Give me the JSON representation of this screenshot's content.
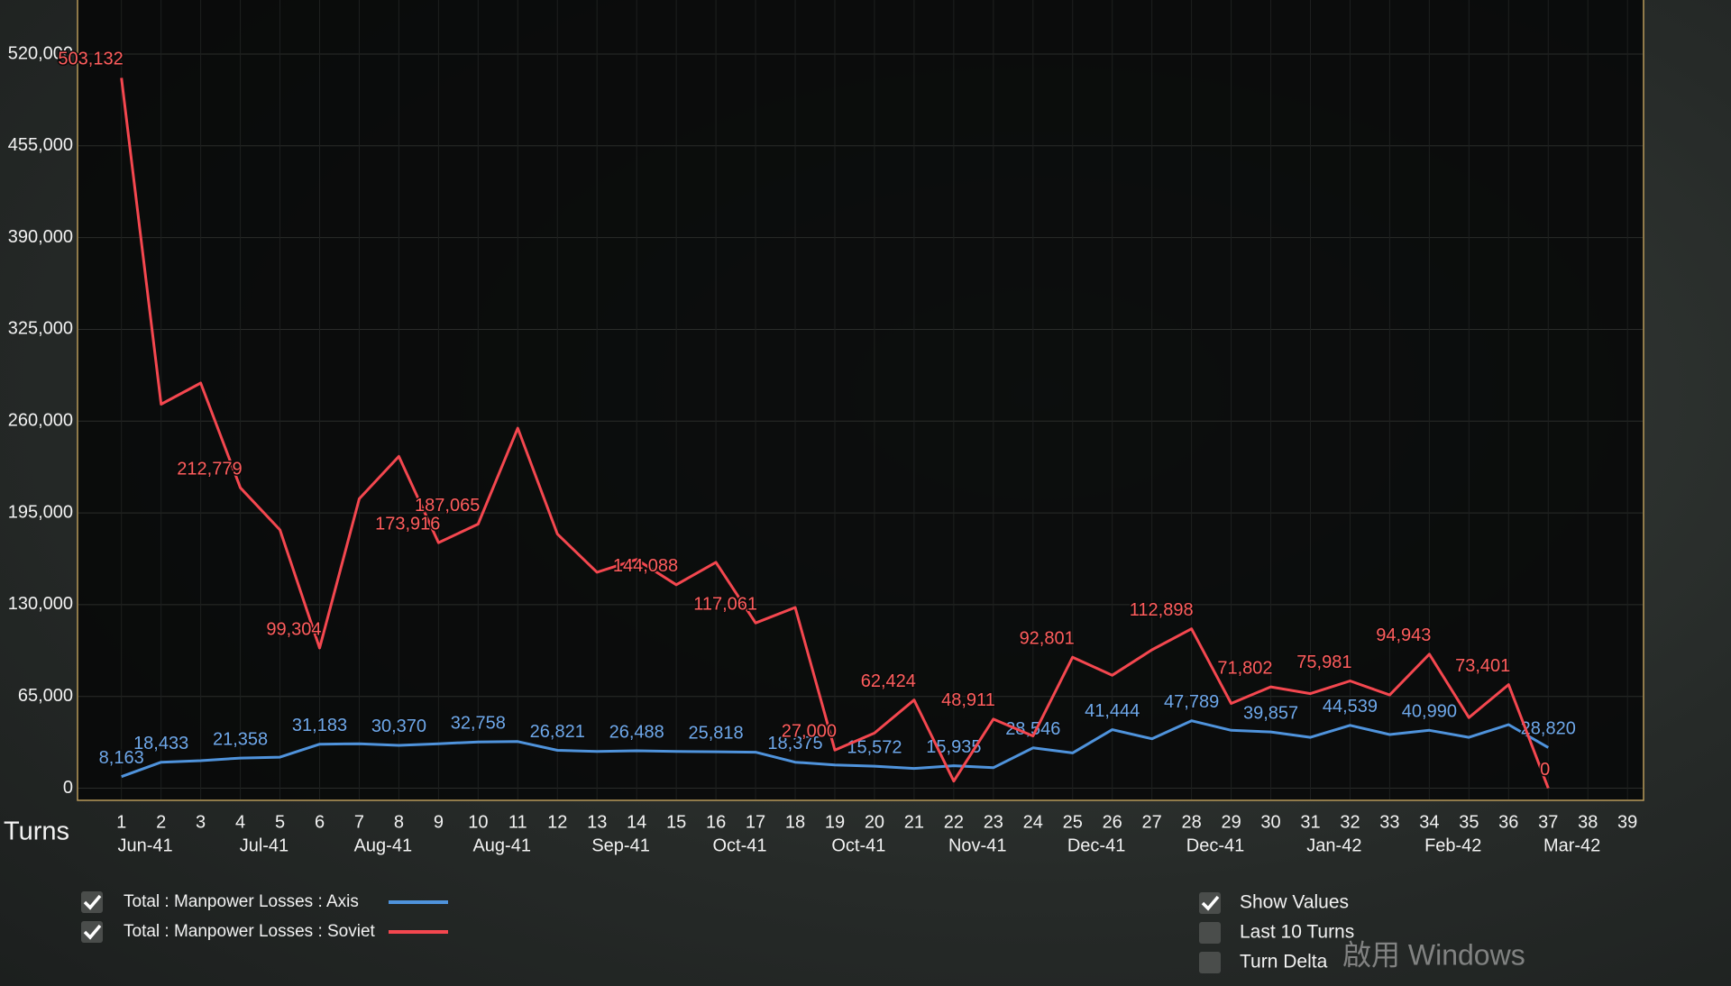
{
  "chart_data": {
    "type": "line",
    "x_label": "Turns",
    "categories": [
      "1",
      "2",
      "3",
      "4",
      "5",
      "6",
      "7",
      "8",
      "9",
      "10",
      "11",
      "12",
      "13",
      "14",
      "15",
      "16",
      "17",
      "18",
      "19",
      "20",
      "21",
      "22",
      "23",
      "24",
      "25",
      "26",
      "27",
      "28",
      "29",
      "30",
      "31",
      "32",
      "33",
      "34",
      "35",
      "36",
      "37",
      "38",
      "39"
    ],
    "months": [
      null,
      "Jun-41",
      null,
      null,
      "Jul-41",
      null,
      null,
      "Aug-41",
      null,
      null,
      "Aug-41",
      null,
      null,
      "Sep-41",
      null,
      null,
      "Oct-41",
      null,
      null,
      "Oct-41",
      null,
      null,
      "Nov-41",
      null,
      null,
      "Dec-41",
      null,
      null,
      "Dec-41",
      null,
      null,
      "Jan-42",
      null,
      null,
      "Feb-42",
      null,
      null,
      "Mar-42",
      null
    ],
    "ylim": [
      -8600,
      558300
    ],
    "yticks": [
      0,
      {
        "value": 65000,
        "label": "65,000"
      },
      {
        "value": 130000,
        "label": "130,000"
      },
      {
        "value": 195000,
        "label": "195,000"
      },
      {
        "value": 260000,
        "label": "260,000"
      },
      {
        "value": 325000,
        "label": "325,000"
      },
      {
        "value": 390000,
        "label": "390,000"
      },
      {
        "value": 455000,
        "label": "455,000"
      },
      {
        "value": 520000,
        "label": "520,000"
      }
    ],
    "grid": true,
    "series": [
      {
        "name": "Total : Manpower Losses : Axis",
        "color": "#4f93dc",
        "checked": true,
        "values": [
          8163,
          18433,
          19500,
          21358,
          22000,
          31183,
          31500,
          30370,
          31500,
          32758,
          33000,
          26821,
          26000,
          26488,
          26000,
          25818,
          25500,
          18375,
          16500,
          15572,
          14000,
          15935,
          14500,
          28546,
          25000,
          41444,
          35000,
          47789,
          41000,
          39857,
          36000,
          44539,
          38000,
          40990,
          36000,
          45000,
          28820,
          null,
          null
        ],
        "value_labels": [
          "8,163",
          "18,433",
          null,
          "21,358",
          null,
          "31,183",
          null,
          "30,370",
          null,
          "32,758",
          null,
          "26,821",
          null,
          "26,488",
          null,
          "25,818",
          null,
          "18,375",
          null,
          "15,572",
          null,
          "15,935",
          null,
          "28,546",
          null,
          "41,444",
          null,
          "47,789",
          null,
          "39,857",
          null,
          "44,539",
          null,
          "40,990",
          null,
          null,
          "28,820",
          null,
          null
        ]
      },
      {
        "name": "Total : Manpower Losses : Soviet",
        "color": "#f4474f",
        "checked": true,
        "values": [
          503132,
          272000,
          287000,
          212779,
          183000,
          99304,
          205000,
          235000,
          173916,
          187065,
          255000,
          180000,
          153000,
          162000,
          144088,
          160000,
          117061,
          128000,
          27000,
          39000,
          62424,
          5000,
          48911,
          37000,
          92801,
          80000,
          98000,
          112898,
          60000,
          71802,
          67000,
          75981,
          66000,
          94943,
          50000,
          73401,
          0,
          null,
          null
        ],
        "value_labels": [
          "503,132",
          null,
          null,
          "212,779",
          null,
          "99,304",
          null,
          null,
          "173,916",
          "187,065",
          null,
          null,
          null,
          null,
          "144,088",
          null,
          "117,061",
          null,
          "27,000",
          null,
          "62,424",
          null,
          "48,911",
          null,
          "92,801",
          null,
          null,
          "112,898",
          null,
          "71,802",
          null,
          "75,981",
          null,
          "94,943",
          null,
          "73,401",
          "0",
          null,
          null
        ]
      }
    ]
  },
  "options": [
    {
      "label": "Show Values",
      "checked": true
    },
    {
      "label": "Last 10 Turns",
      "checked": false
    },
    {
      "label": "Turn Delta",
      "checked": false
    }
  ],
  "watermark": "啟用 Windows"
}
